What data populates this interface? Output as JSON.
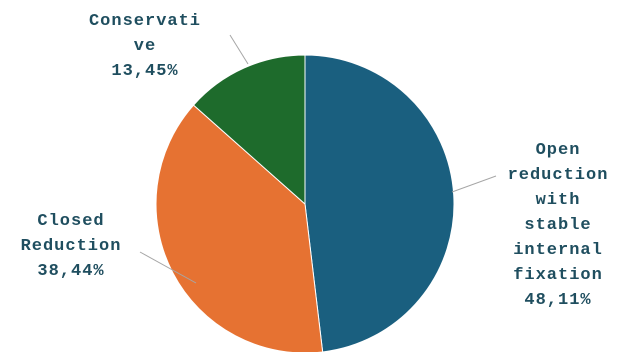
{
  "chart_data": {
    "type": "pie",
    "categories": [
      "Open reduction with stable internal fixation",
      "Closed Reduction",
      "Conservative"
    ],
    "values": [
      48.11,
      38.44,
      13.45
    ],
    "value_labels": [
      "48,11%",
      "38,44%",
      "13,45%"
    ],
    "colors": [
      "#1a5f7f",
      "#e67232",
      "#1e6b2c"
    ],
    "label_lines": [
      [
        "Open",
        "reduction",
        "with",
        "stable",
        "internal",
        "fixation",
        "48,11%"
      ],
      [
        "Closed",
        "Reduction",
        "38,44%"
      ],
      [
        "Conservati",
        "ve",
        "13,45%"
      ]
    ],
    "title": "",
    "start": "12 o'clock",
    "direction": "clockwise",
    "legend": "none"
  }
}
